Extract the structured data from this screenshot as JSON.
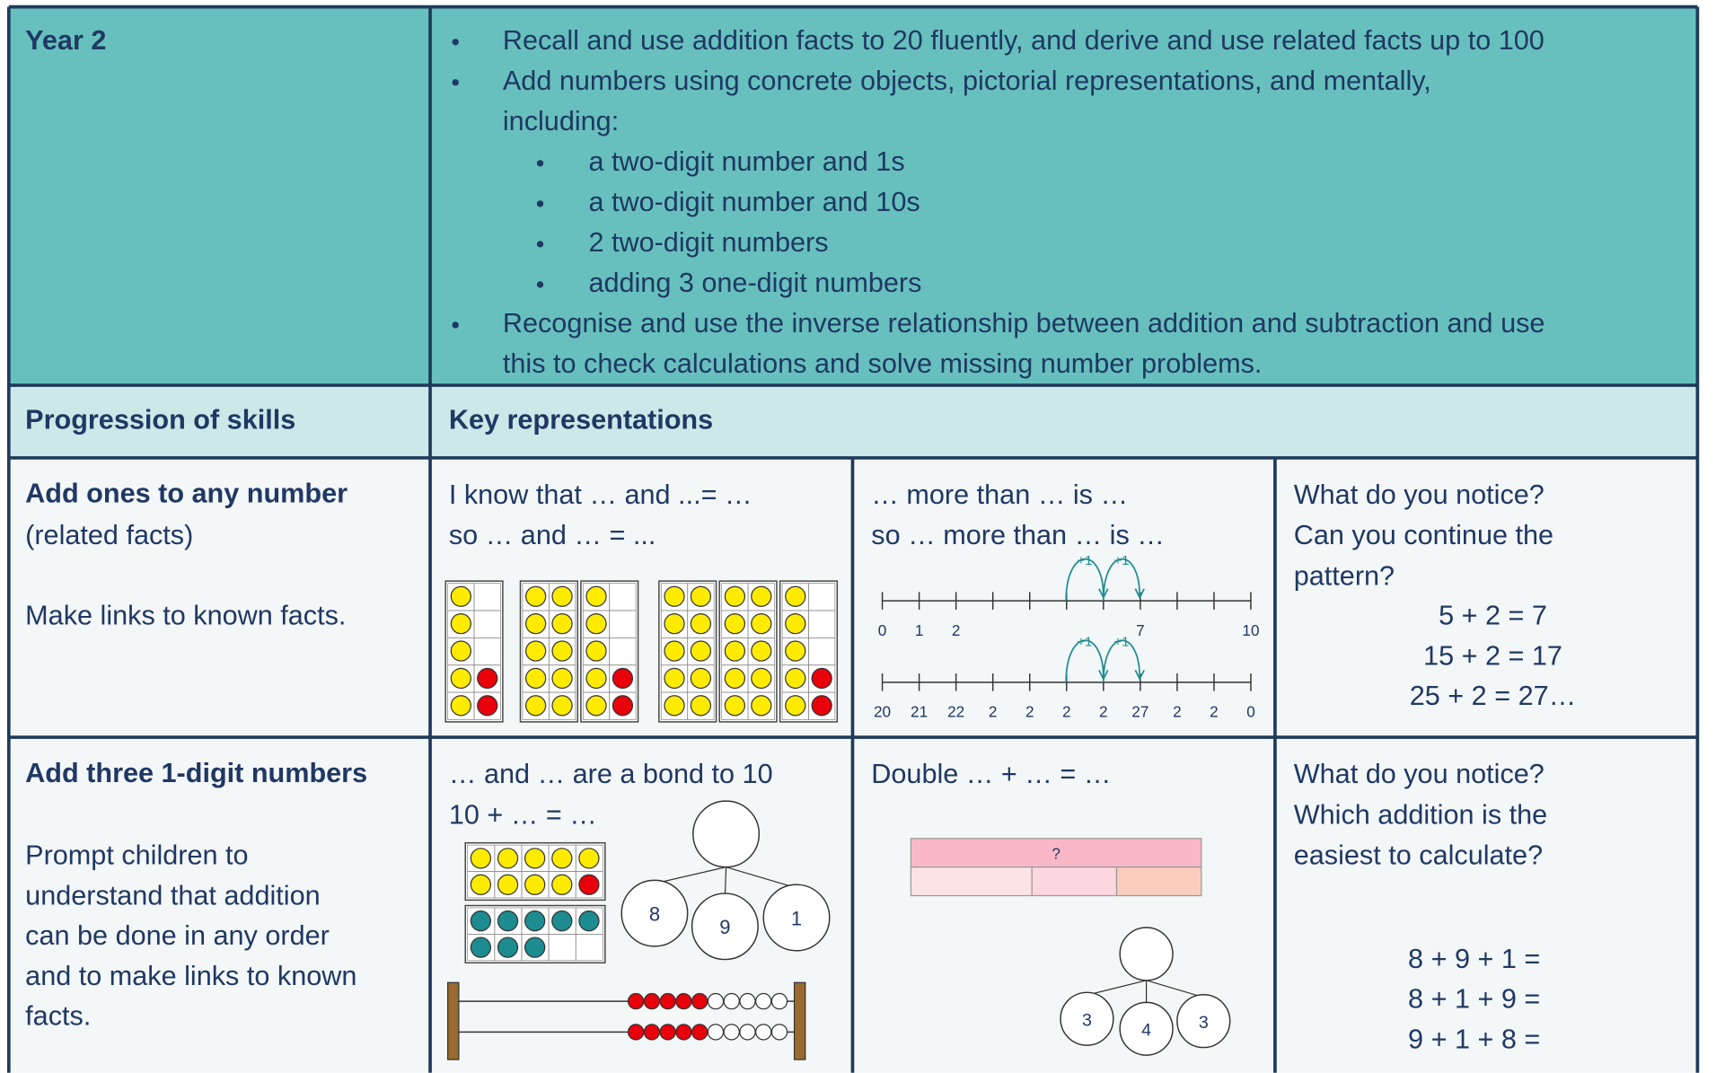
{
  "header": {
    "year": "Year 2",
    "objectives": [
      {
        "lines": [
          "Recall and use addition facts to 20 fluently, and derive and use related facts up to 100"
        ]
      },
      {
        "lines": [
          "Add numbers using concrete objects, pictorial representations, and mentally,",
          "including:"
        ],
        "sub": [
          "a two-digit number and 1s",
          "a two-digit number and 10s",
          "2 two-digit numbers",
          "adding 3 one-digit numbers"
        ]
      },
      {
        "lines": [
          "Recognise and use the inverse relationship between addition and subtraction and use",
          "this to check calculations and solve missing number problems."
        ]
      }
    ]
  },
  "subheader": {
    "left": "Progression of skills",
    "right": "Key representations"
  },
  "rows": [
    {
      "skill": {
        "title": "Add ones to any number",
        "note": "(related facts)",
        "lines": [
          "Make links to known facts."
        ]
      },
      "cells": [
        {
          "lines": [
            "I know that … and ...= …",
            "so … and … = ..."
          ]
        },
        {
          "lines": [
            "… more than … is …",
            "so … more than … is …"
          ],
          "jump_label": "+1",
          "number_lines": [
            {
              "labels": [
                "0",
                "1",
                "2",
                null,
                null,
                null,
                null,
                "7",
                null,
                null,
                "10"
              ]
            },
            {
              "labels": [
                "20",
                "21",
                "22",
                "2",
                "2",
                "2",
                "2",
                "27",
                "2",
                "2",
                "0"
              ]
            }
          ]
        },
        {
          "lines": [
            "What do you notice?",
            "Can you continue the",
            "pattern?"
          ],
          "equations": [
            "5 + 2 = 7",
            "15 + 2 = 17",
            "25 + 2 = 27…"
          ]
        }
      ]
    },
    {
      "skill": {
        "title": "Add three 1-digit numbers",
        "lines": [
          "Prompt children to",
          "understand that addition",
          "can be done in any order",
          "and to make links to known",
          "facts."
        ]
      },
      "cells": [
        {
          "lines": [
            "… and … are a bond to 10",
            "10 + … = …"
          ],
          "part_whole": [
            "8",
            "9",
            "1"
          ]
        },
        {
          "lines": [
            "Double … + … = …"
          ],
          "bar_label": "?",
          "part_whole": [
            "3",
            "4",
            "3"
          ]
        },
        {
          "lines": [
            "What do you notice?",
            "Which addition is the",
            "easiest to calculate?"
          ],
          "equations": [
            "8 + 9 + 1 =",
            "8 + 1 + 9 =",
            "9 + 1 + 8 ="
          ]
        }
      ]
    }
  ]
}
